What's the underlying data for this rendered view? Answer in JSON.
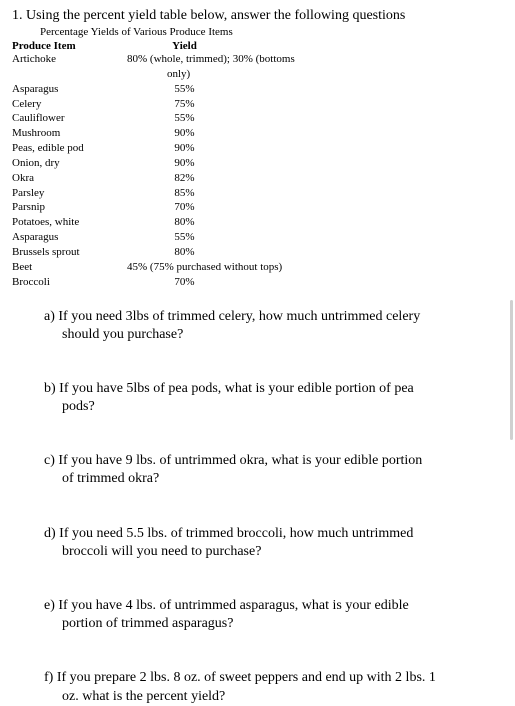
{
  "mainQuestion": "1. Using the percent yield table below, answer the following questions",
  "tableTitle": "Percentage Yields of Various Produce Items",
  "tableHeaders": {
    "item": "Produce Item",
    "yield": "Yield"
  },
  "artichoke": {
    "name": "Artichoke",
    "yield": "80% (whole, trimmed); 30% (bottoms",
    "cont": "only)"
  },
  "rows": [
    {
      "name": "Asparagus",
      "yield": "55%"
    },
    {
      "name": "Celery",
      "yield": "75%"
    },
    {
      "name": "Cauliflower",
      "yield": "55%"
    },
    {
      "name": "Mushroom",
      "yield": "90%"
    },
    {
      "name": "Peas, edible pod",
      "yield": "90%"
    },
    {
      "name": "Onion, dry",
      "yield": "90%"
    },
    {
      "name": "Okra",
      "yield": "82%"
    },
    {
      "name": "Parsley",
      "yield": "85%"
    },
    {
      "name": "Parsnip",
      "yield": "70%"
    },
    {
      "name": "Potatoes, white",
      "yield": "80%"
    },
    {
      "name": "Asparagus",
      "yield": "55%"
    },
    {
      "name": "Brussels sprout",
      "yield": "80%"
    }
  ],
  "beet": {
    "name": "Beet",
    "yield": "45% (75% purchased without tops)"
  },
  "broccoli": {
    "name": "Broccoli",
    "yield": "70%"
  },
  "questions": {
    "a": {
      "line1": "a) If you need 3lbs of trimmed celery, how much untrimmed celery",
      "line2": "should you purchase?"
    },
    "b": {
      "line1": "b) If you have 5lbs of pea pods, what is your edible portion of pea",
      "line2": "pods?"
    },
    "c": {
      "line1": "c) If you have 9 lbs. of untrimmed okra, what is your edible portion",
      "line2": "of trimmed okra?"
    },
    "d": {
      "line1": "d) If you need 5.5 lbs. of trimmed broccoli, how much untrimmed",
      "line2": "broccoli will you need to purchase?"
    },
    "e": {
      "line1": "e) If you have 4 lbs. of untrimmed asparagus, what is your edible",
      "line2": "portion of trimmed asparagus?"
    },
    "f": {
      "line1": "f) If you prepare 2 lbs. 8 oz. of sweet peppers and end up with 2 lbs. 1",
      "line2": "oz. what is the percent yield?"
    }
  }
}
